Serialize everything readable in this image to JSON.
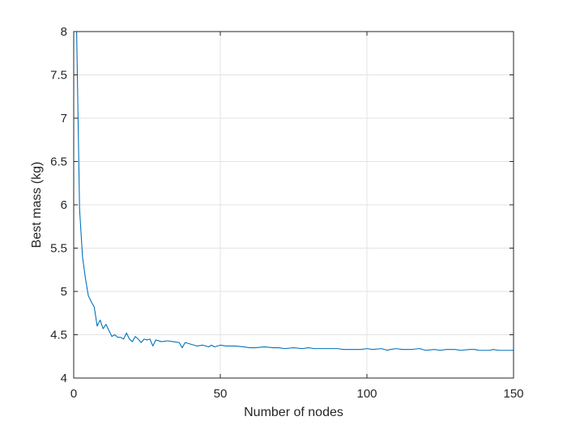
{
  "chart_data": {
    "type": "line",
    "title": "",
    "xlabel": "Number of nodes",
    "ylabel": "Best mass (kg)",
    "xlim": [
      0,
      150
    ],
    "ylim": [
      4,
      8
    ],
    "xticks": [
      0,
      50,
      100,
      150
    ],
    "yticks": [
      4,
      4.5,
      5,
      5.5,
      6,
      6.5,
      7,
      7.5,
      8
    ],
    "xtick_labels": [
      "0",
      "50",
      "100",
      "150"
    ],
    "ytick_labels": [
      "4",
      "4.5",
      "5",
      "5.5",
      "6",
      "6.5",
      "7",
      "7.5",
      "8"
    ],
    "grid": true,
    "line_color": "#0072BD",
    "series": [
      {
        "x": [
          1,
          2,
          3,
          4,
          5,
          6,
          7,
          8,
          9,
          10,
          11,
          12,
          13,
          14,
          15,
          16,
          17,
          18,
          19,
          20,
          21,
          22,
          23,
          24,
          25,
          26,
          27,
          28,
          30,
          32,
          34,
          36,
          37,
          38,
          40,
          42,
          44,
          46,
          47,
          48,
          50,
          52,
          55,
          58,
          60,
          62,
          65,
          68,
          70,
          72,
          75,
          78,
          80,
          82,
          85,
          88,
          90,
          92,
          95,
          98,
          100,
          102,
          105,
          107,
          108,
          110,
          112,
          115,
          118,
          120,
          123,
          125,
          127,
          128,
          130,
          132,
          135,
          137,
          138,
          140,
          142,
          143,
          145,
          150
        ],
        "values": [
          8.0,
          5.95,
          5.4,
          5.15,
          4.95,
          4.88,
          4.82,
          4.6,
          4.67,
          4.57,
          4.62,
          4.55,
          4.48,
          4.5,
          4.47,
          4.47,
          4.45,
          4.52,
          4.45,
          4.42,
          4.48,
          4.45,
          4.41,
          4.45,
          4.44,
          4.45,
          4.37,
          4.44,
          4.42,
          4.43,
          4.42,
          4.41,
          4.35,
          4.41,
          4.39,
          4.37,
          4.38,
          4.36,
          4.38,
          4.36,
          4.38,
          4.37,
          4.37,
          4.36,
          4.35,
          4.35,
          4.36,
          4.35,
          4.35,
          4.34,
          4.35,
          4.34,
          4.35,
          4.34,
          4.34,
          4.34,
          4.34,
          4.33,
          4.33,
          4.33,
          4.34,
          4.33,
          4.34,
          4.32,
          4.33,
          4.34,
          4.33,
          4.33,
          4.34,
          4.32,
          4.33,
          4.32,
          4.33,
          4.33,
          4.33,
          4.32,
          4.33,
          4.33,
          4.32,
          4.32,
          4.32,
          4.33,
          4.32,
          4.32
        ]
      }
    ]
  }
}
